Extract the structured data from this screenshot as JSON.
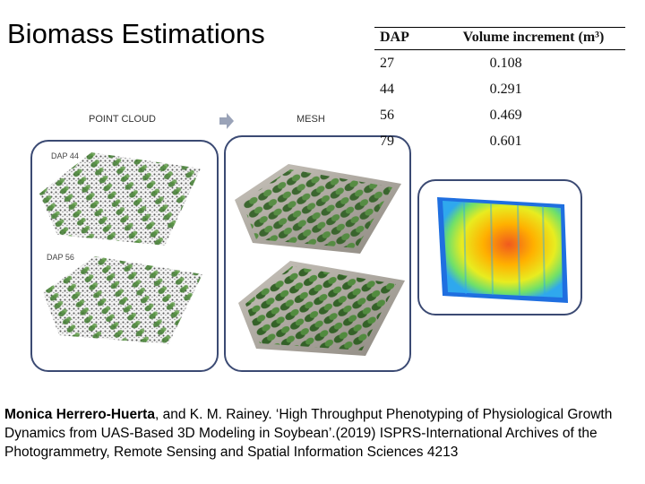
{
  "slide": {
    "title": "Biomass Estimations"
  },
  "diagram": {
    "point_cloud_label": "POINT CLOUD",
    "mesh_label": "MESH",
    "dap_44_label": "DAP 44",
    "dap_56_label": "DAP 56"
  },
  "table": {
    "headers": [
      "DAP",
      "Volume increment (m³)"
    ],
    "rows": [
      [
        "27",
        "0.108"
      ],
      [
        "44",
        "0.291"
      ],
      [
        "56",
        "0.469"
      ],
      [
        "79",
        "0.601"
      ]
    ]
  },
  "citation": {
    "author": "Monica Herrero-Huerta",
    "rest": ", and K. M. Rainey. ‘High Throughput Phenotyping of Physiological Growth Dynamics from UAS-Based 3D Modeling in Soybean’.(2019) ISPRS-International Archives of the Photogrammetry, Remote Sensing and Spatial Information Sciences 4213"
  },
  "colors": {
    "panel_border": "#3b4a73",
    "arrow": "#9aa3b8"
  }
}
